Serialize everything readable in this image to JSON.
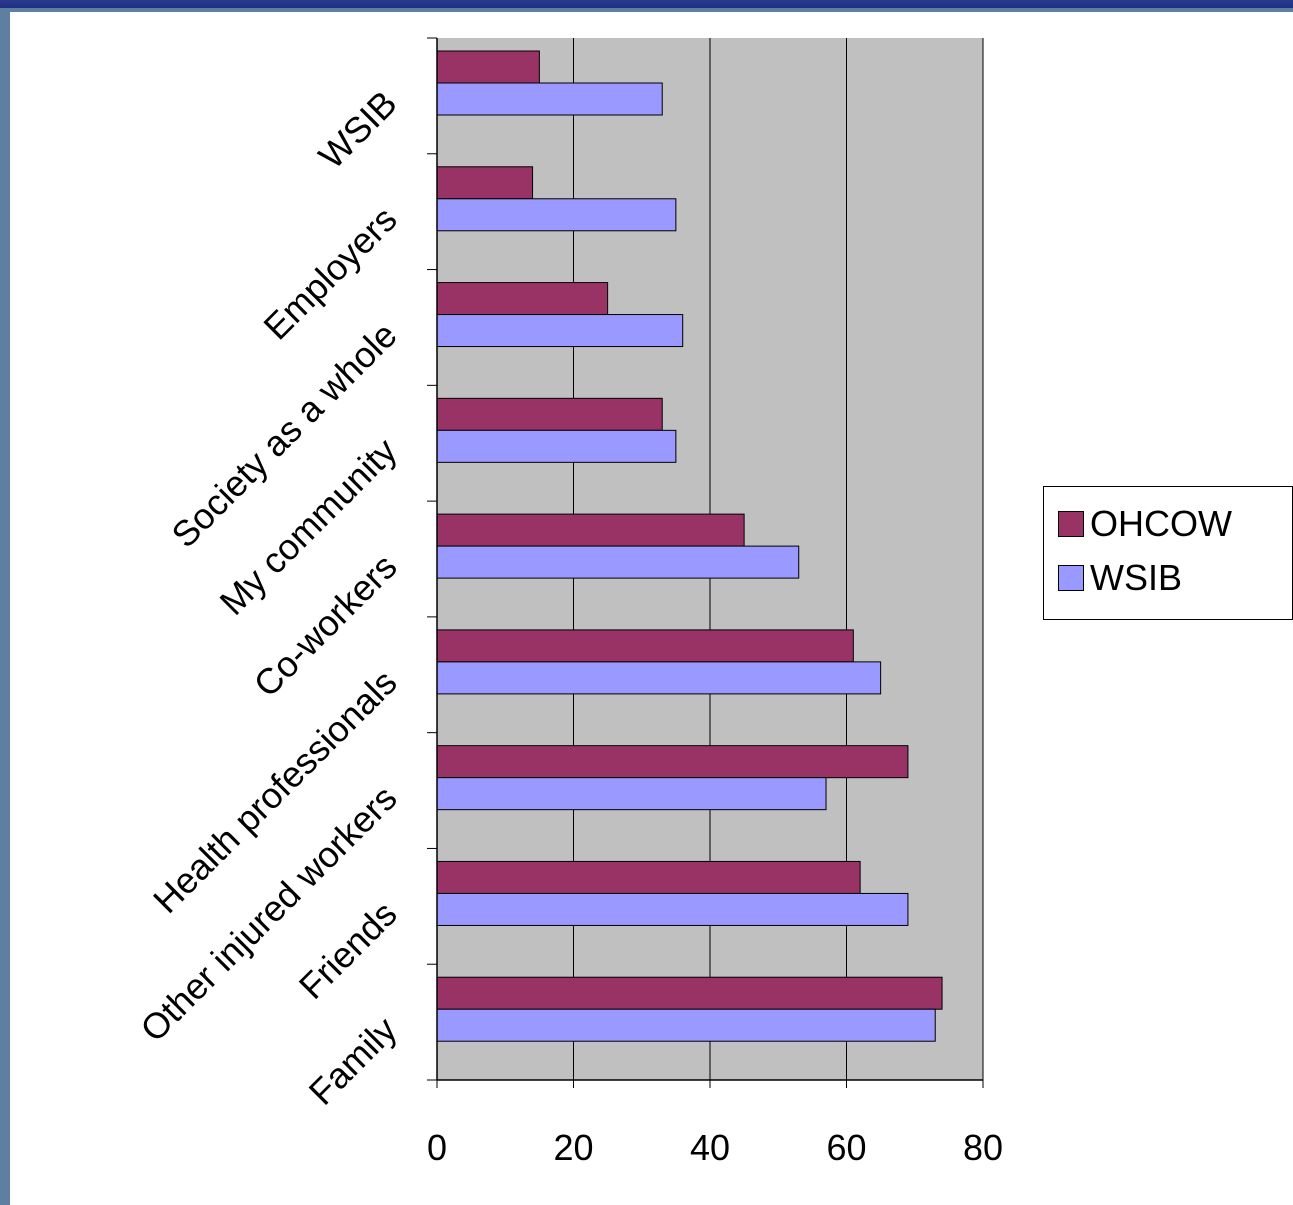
{
  "chart_data": {
    "type": "bar",
    "orientation": "horizontal",
    "title": "",
    "xlabel": "",
    "ylabel": "",
    "xlim": [
      0,
      80
    ],
    "x_ticks": [
      "0",
      "20",
      "40",
      "60",
      "80"
    ],
    "grid": true,
    "legend_position": "right",
    "categories": [
      "Family",
      "Friends",
      "Other injured workers",
      "Health professionals",
      "Co-workers",
      "My community",
      "Society as a whole",
      "Employers",
      "WSIB"
    ],
    "series": [
      {
        "name": "OHCOW",
        "color": "#993366",
        "values": [
          74,
          62,
          69,
          61,
          45,
          33,
          25,
          14,
          15
        ]
      },
      {
        "name": "WSIB",
        "color": "#9999ff",
        "values": [
          73,
          69,
          57,
          65,
          53,
          35,
          36,
          35,
          33
        ]
      }
    ]
  },
  "colors": {
    "plot_background": "#c0c0c0",
    "slide_frame": "#5f7fa0",
    "slide_header": "#1f2f86"
  }
}
